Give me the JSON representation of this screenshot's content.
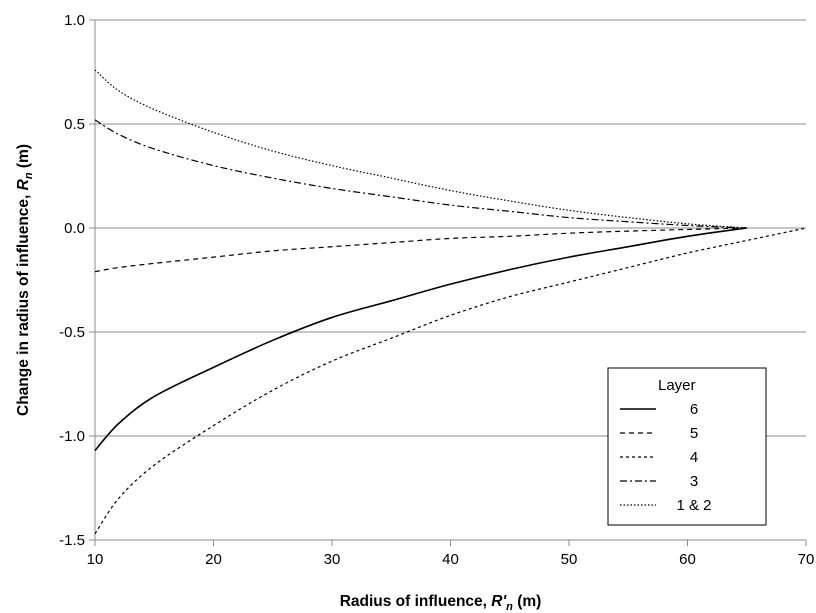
{
  "chart_data": {
    "type": "line",
    "title": "",
    "xlabel": {
      "main": "Radius of influence, ",
      "var": "R'",
      "sub": "n",
      "unit": "  (m)"
    },
    "ylabel": {
      "main": "Change in radius of influence, ",
      "var": "R",
      "sub": "n",
      "unit": "  (m)"
    },
    "xlim": [
      10,
      70
    ],
    "ylim": [
      -1.5,
      1.0
    ],
    "xticks": [
      10,
      20,
      30,
      40,
      50,
      60,
      70
    ],
    "yticks": [
      -1.5,
      -1.0,
      -0.5,
      0.0,
      0.5,
      1.0
    ],
    "ytick_labels": [
      "-1.5",
      "-1.0",
      "-0.5",
      "0.0",
      "0.5",
      "1.0"
    ],
    "grid": "horizontal",
    "legend": {
      "title": "Layer",
      "placement": "bottom-right"
    },
    "series": [
      {
        "name": "6",
        "style": "solid",
        "x": [
          10,
          12,
          15,
          20,
          25,
          30,
          35,
          40,
          45,
          50,
          55,
          60,
          65
        ],
        "y": [
          -1.07,
          -0.94,
          -0.81,
          -0.67,
          -0.54,
          -0.43,
          -0.35,
          -0.27,
          -0.2,
          -0.14,
          -0.09,
          -0.04,
          0.0
        ]
      },
      {
        "name": "5",
        "style": "dashed",
        "x": [
          10,
          12,
          15,
          20,
          25,
          30,
          35,
          40,
          45,
          50,
          55,
          60,
          65
        ],
        "y": [
          -0.21,
          -0.19,
          -0.17,
          -0.14,
          -0.11,
          -0.09,
          -0.07,
          -0.05,
          -0.04,
          -0.025,
          -0.015,
          -0.007,
          0.0
        ]
      },
      {
        "name": "4",
        "style": "dashed-fine",
        "x": [
          10,
          12,
          15,
          20,
          25,
          30,
          35,
          40,
          45,
          50,
          55,
          60,
          65,
          70
        ],
        "y": [
          -1.47,
          -1.3,
          -1.14,
          -0.95,
          -0.78,
          -0.64,
          -0.53,
          -0.42,
          -0.33,
          -0.26,
          -0.19,
          -0.12,
          -0.06,
          0.0
        ]
      },
      {
        "name": "3",
        "style": "dash-dot",
        "x": [
          10,
          12,
          15,
          20,
          25,
          30,
          35,
          40,
          45,
          50,
          55,
          60,
          65
        ],
        "y": [
          0.52,
          0.45,
          0.38,
          0.3,
          0.24,
          0.19,
          0.15,
          0.11,
          0.08,
          0.05,
          0.03,
          0.012,
          0.0
        ]
      },
      {
        "name": "1 & 2",
        "style": "dotted",
        "x": [
          10,
          12,
          15,
          20,
          25,
          30,
          35,
          40,
          45,
          50,
          55,
          60,
          65
        ],
        "y": [
          0.76,
          0.66,
          0.57,
          0.46,
          0.37,
          0.3,
          0.24,
          0.18,
          0.13,
          0.085,
          0.05,
          0.02,
          0.0
        ]
      }
    ]
  }
}
